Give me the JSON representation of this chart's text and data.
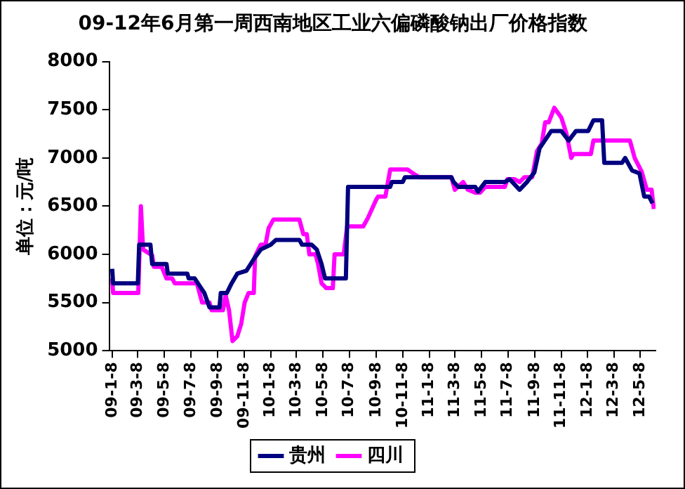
{
  "chart_data": {
    "type": "line",
    "title": "09-12年6月第一周西南地区工业六偏磷酸钠出厂价格指数",
    "ylabel": "单位：元/吨",
    "marker": "none",
    "line_style": "solid",
    "legend": "bottom",
    "grid": false,
    "xlim": [
      "2009-01-01",
      "2012-06-12"
    ],
    "ylim": [
      5000,
      8000
    ],
    "yticks": [
      5000,
      5500,
      6000,
      6500,
      7000,
      7500,
      8000
    ],
    "xticks": [
      {
        "value": "2009-01-08",
        "label": "09-1-8"
      },
      {
        "value": "2009-03-08",
        "label": "09-3-8"
      },
      {
        "value": "2009-05-08",
        "label": "09-5-8"
      },
      {
        "value": "2009-07-08",
        "label": "09-7-8"
      },
      {
        "value": "2009-09-08",
        "label": "09-9-8"
      },
      {
        "value": "2009-11-08",
        "label": "09-11-8"
      },
      {
        "value": "2010-01-08",
        "label": "10-1-8"
      },
      {
        "value": "2010-03-08",
        "label": "10-3-8"
      },
      {
        "value": "2010-05-08",
        "label": "10-5-8"
      },
      {
        "value": "2010-07-08",
        "label": "10-7-8"
      },
      {
        "value": "2010-09-08",
        "label": "10-9-8"
      },
      {
        "value": "2010-11-08",
        "label": "10-11-8"
      },
      {
        "value": "2011-01-08",
        "label": "11-1-8"
      },
      {
        "value": "2011-03-08",
        "label": "11-3-8"
      },
      {
        "value": "2011-05-08",
        "label": "11-5-8"
      },
      {
        "value": "2011-07-08",
        "label": "11-7-8"
      },
      {
        "value": "2011-09-08",
        "label": "11-9-8"
      },
      {
        "value": "2011-11-08",
        "label": "11-11-8"
      },
      {
        "value": "2012-01-08",
        "label": "12-1-8"
      },
      {
        "value": "2012-03-08",
        "label": "12-3-8"
      },
      {
        "value": "2012-05-08",
        "label": "12-5-8"
      }
    ],
    "series": [
      {
        "name": "贵州",
        "color": "#000080",
        "x": [
          "2009-01-08",
          "2009-01-10",
          "2009-03-08",
          "2009-03-11",
          "2009-04-06",
          "2009-04-10",
          "2009-05-13",
          "2009-05-16",
          "2009-06-30",
          "2009-07-03",
          "2009-07-17",
          "2009-08-08",
          "2009-08-20",
          "2009-09-12",
          "2009-09-15",
          "2009-09-29",
          "2009-10-10",
          "2009-10-23",
          "2009-11-13",
          "2009-11-30",
          "2009-12-16",
          "2010-01-08",
          "2010-01-20",
          "2010-03-15",
          "2010-03-21",
          "2010-04-12",
          "2010-04-24",
          "2010-05-05",
          "2010-05-13",
          "2010-06-30",
          "2010-07-05",
          "2010-10-10",
          "2010-10-14",
          "2010-11-08",
          "2010-11-13",
          "2011-02-28",
          "2011-03-05",
          "2011-03-16",
          "2011-04-24",
          "2011-04-30",
          "2011-05-17",
          "2011-07-01",
          "2011-07-12",
          "2011-08-04",
          "2011-08-21",
          "2011-09-07",
          "2011-09-19",
          "2011-10-16",
          "2011-11-08",
          "2011-11-25",
          "2011-12-12",
          "2012-01-09",
          "2012-01-21",
          "2012-02-10",
          "2012-02-15",
          "2012-03-27",
          "2012-04-03",
          "2012-04-19",
          "2012-05-06",
          "2012-05-17",
          "2012-05-28",
          "2012-06-05"
        ],
        "values": [
          5850,
          5700,
          5700,
          6100,
          6100,
          5900,
          5900,
          5800,
          5800,
          5750,
          5750,
          5600,
          5450,
          5450,
          5600,
          5600,
          5700,
          5800,
          5830,
          5950,
          6050,
          6100,
          6150,
          6150,
          6100,
          6100,
          6050,
          5900,
          5750,
          5750,
          6700,
          6700,
          6750,
          6750,
          6800,
          6800,
          6750,
          6700,
          6700,
          6650,
          6750,
          6750,
          6780,
          6670,
          6750,
          6850,
          7100,
          7280,
          7280,
          7180,
          7280,
          7280,
          7390,
          7390,
          6950,
          6950,
          7000,
          6870,
          6840,
          6600,
          6600,
          6530
        ]
      },
      {
        "name": "四川",
        "color": "#ff00ff",
        "x": [
          "2009-01-08",
          "2009-01-10",
          "2009-03-09",
          "2009-03-15",
          "2009-03-20",
          "2009-04-10",
          "2009-04-14",
          "2009-05-02",
          "2009-05-13",
          "2009-05-26",
          "2009-06-01",
          "2009-07-22",
          "2009-08-03",
          "2009-08-20",
          "2009-08-25",
          "2009-09-20",
          "2009-09-26",
          "2009-10-04",
          "2009-10-12",
          "2009-10-23",
          "2009-11-01",
          "2009-11-09",
          "2009-11-18",
          "2009-11-30",
          "2009-12-03",
          "2009-12-16",
          "2009-12-27",
          "2010-01-03",
          "2010-01-14",
          "2010-03-15",
          "2010-03-24",
          "2010-04-01",
          "2010-04-07",
          "2010-04-21",
          "2010-04-27",
          "2010-05-05",
          "2010-05-16",
          "2010-05-31",
          "2010-06-04",
          "2010-06-25",
          "2010-07-03",
          "2010-08-09",
          "2010-08-20",
          "2010-09-07",
          "2010-09-12",
          "2010-09-29",
          "2010-10-10",
          "2010-11-19",
          "2010-12-05",
          "2010-12-16",
          "2011-02-28",
          "2011-03-08",
          "2011-03-27",
          "2011-04-07",
          "2011-04-24",
          "2011-05-05",
          "2011-05-17",
          "2011-07-01",
          "2011-07-07",
          "2011-07-23",
          "2011-08-04",
          "2011-08-15",
          "2011-09-02",
          "2011-09-13",
          "2011-09-24",
          "2011-10-02",
          "2011-10-10",
          "2011-10-23",
          "2011-11-08",
          "2011-11-20",
          "2011-12-01",
          "2011-12-06",
          "2012-01-15",
          "2012-01-21",
          "2012-04-14",
          "2012-04-25",
          "2012-05-11",
          "2012-05-23",
          "2012-06-03",
          "2012-06-08"
        ],
        "values": [
          5750,
          5600,
          5600,
          6500,
          6050,
          5990,
          5870,
          5870,
          5750,
          5750,
          5700,
          5700,
          5500,
          5500,
          5420,
          5420,
          5580,
          5420,
          5100,
          5150,
          5280,
          5500,
          5600,
          5600,
          5980,
          6100,
          6100,
          6270,
          6360,
          6360,
          6210,
          6210,
          6000,
          6000,
          5900,
          5700,
          5650,
          5650,
          6000,
          6000,
          6290,
          6290,
          6380,
          6560,
          6600,
          6600,
          6880,
          6880,
          6830,
          6800,
          6800,
          6670,
          6750,
          6670,
          6640,
          6640,
          6700,
          6700,
          6780,
          6780,
          6750,
          6800,
          6800,
          7070,
          7150,
          7370,
          7370,
          7520,
          7420,
          7250,
          7000,
          7040,
          7040,
          7180,
          7180,
          7000,
          6860,
          6670,
          6670,
          6470
        ]
      }
    ]
  }
}
